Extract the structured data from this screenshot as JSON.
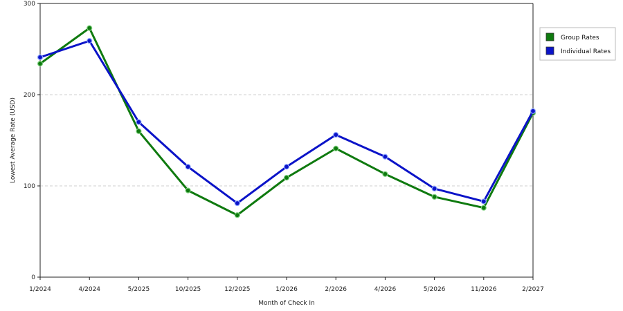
{
  "chart_data": {
    "type": "line",
    "categories": [
      "1/2024",
      "4/2024",
      "5/2025",
      "10/2025",
      "12/2025",
      "1/2026",
      "2/2026",
      "4/2026",
      "5/2026",
      "11/2026",
      "2/2027"
    ],
    "series": [
      {
        "name": "Group Rates",
        "color": "#0f7a0f",
        "values": [
          234,
          273,
          160,
          95,
          68,
          109,
          141,
          113,
          88,
          76,
          180
        ]
      },
      {
        "name": "Individual Rates",
        "color": "#0b13c8",
        "values": [
          241,
          259,
          170,
          121,
          81,
          121,
          156,
          132,
          97,
          83,
          182
        ]
      }
    ],
    "xlabel": "Month of Check In",
    "ylabel": "Lowest Average Rate (USD)",
    "ylim": [
      0,
      300
    ],
    "yticks": [
      0,
      100,
      200,
      300
    ],
    "grid": "horizontal dashed",
    "legend_position": "top-right"
  }
}
